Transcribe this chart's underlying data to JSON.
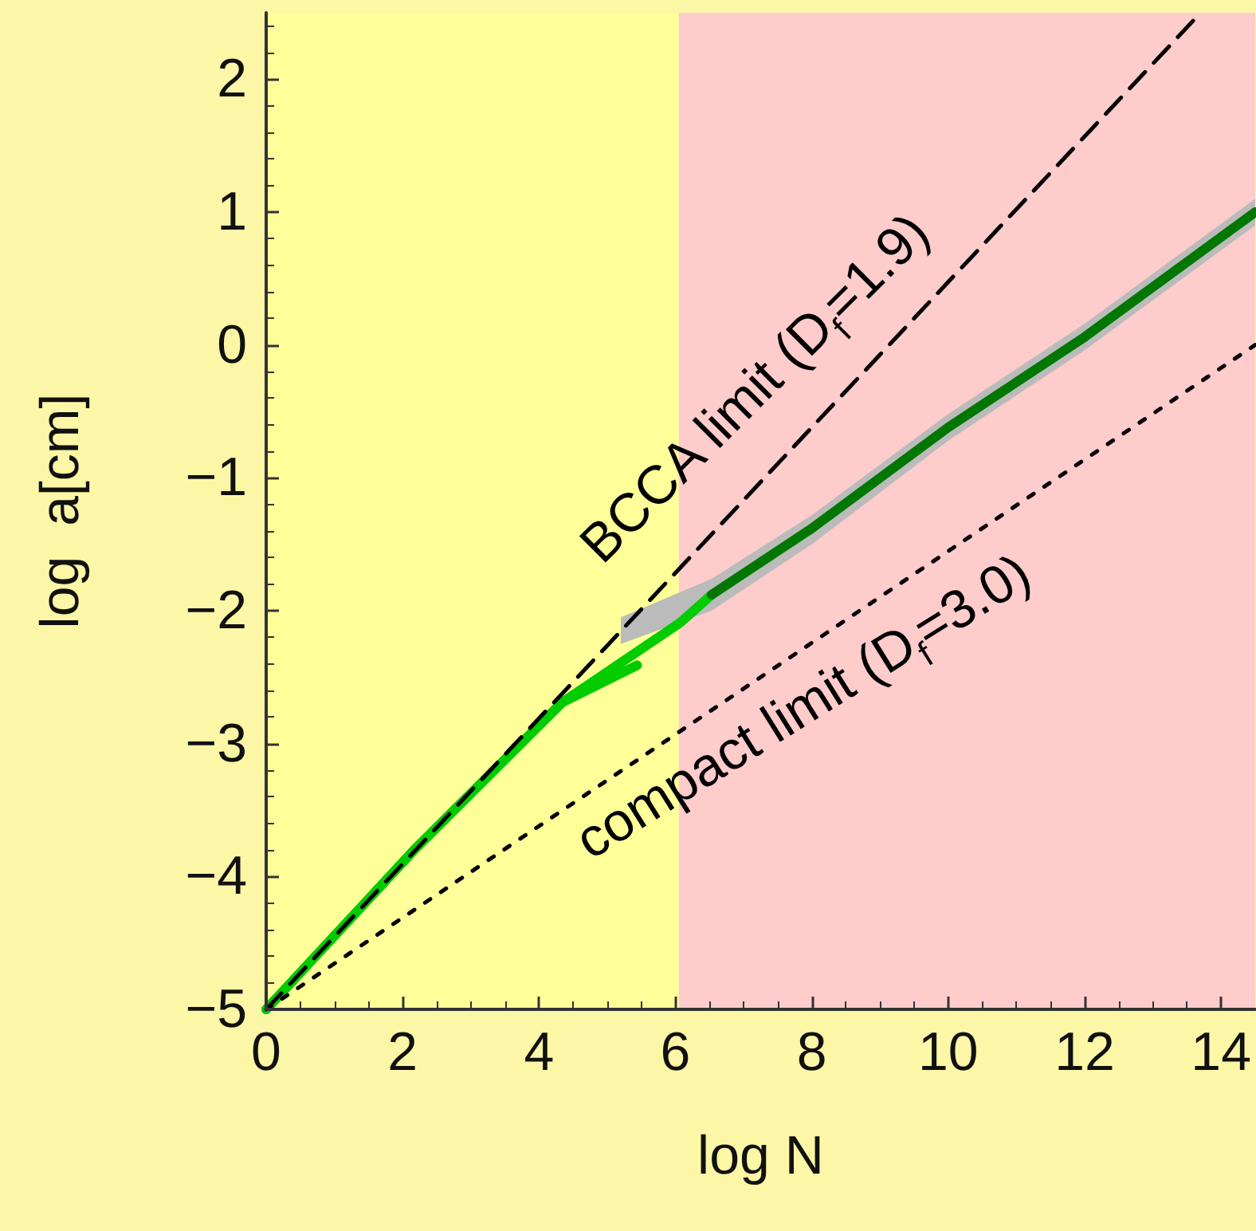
{
  "chart_data": {
    "type": "line",
    "xlabel": "log N",
    "ylabel": "log  a[cm]",
    "xlim": [
      0,
      14.5
    ],
    "ylim": [
      -5,
      2.5
    ],
    "xticks": [
      0,
      2,
      4,
      6,
      8,
      10,
      12,
      14
    ],
    "yticks": [
      -5,
      -4,
      -3,
      -2,
      -1,
      0,
      1,
      2
    ],
    "bands": [
      {
        "axis": "x",
        "from": 0,
        "to": 6.05,
        "color": "#ffff99"
      },
      {
        "axis": "x",
        "from": 6.05,
        "to": 14.5,
        "color": "#ffcccc"
      }
    ],
    "series": [
      {
        "color": "#000000",
        "line_style": "dashed",
        "x": [
          0,
          13.7
        ],
        "values": [
          -5,
          2.5
        ]
      },
      {
        "color": "#000000",
        "line_style": "dotted",
        "x": [
          0,
          14.5
        ],
        "values": [
          -5,
          0
        ]
      },
      {
        "color": "#00cc00",
        "x": [
          0,
          2.17,
          4.34,
          5.44
        ],
        "values": [
          -5,
          -3.8,
          -2.69,
          -2.41
        ]
      },
      {
        "color": "#00cc00",
        "x": [
          0,
          2.17,
          4.34,
          6.07,
          6.53
        ],
        "values": [
          -5,
          -3.8,
          -2.69,
          -2.09,
          -1.88
        ]
      },
      {
        "color": "#007700",
        "x": [
          5.2,
          6.53,
          8,
          10,
          12,
          14.5
        ],
        "values": [
          null,
          -1.88,
          -1.38,
          -0.62,
          0.06,
          1.0
        ],
        "lower": [
          -2.25,
          -2.0,
          -1.5,
          -0.72,
          -0.04,
          0.9
        ],
        "upper": [
          -2.05,
          -1.76,
          -1.28,
          -0.52,
          0.16,
          1.1
        ]
      }
    ],
    "annotations": [
      "BCCA limit (D$_{f}$=1.9)",
      "compact limit (D$_{f}$=3.0)"
    ]
  }
}
